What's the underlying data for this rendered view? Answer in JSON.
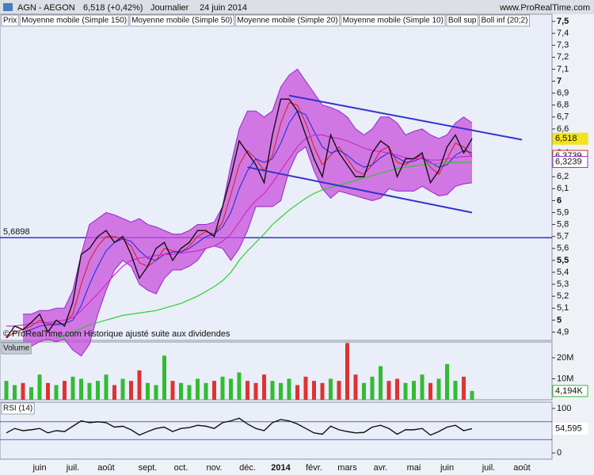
{
  "header": {
    "symbol": "AGN - AEGON",
    "price": "6,518 (+0,42%)",
    "period": "Journalier",
    "date": "24 juin 2014",
    "site": "www.ProRealTime.com"
  },
  "chart_data": [
    {
      "type": "line",
      "note": "© ProRealTime.com Historique ajusté suite aux dividendes",
      "categories": [
        null,
        null,
        null,
        null,
        "juin",
        null,
        null,
        null,
        "juil.",
        null,
        null,
        null,
        "août",
        null,
        null,
        null,
        null,
        "sept.",
        null,
        null,
        null,
        "oct.",
        null,
        null,
        null,
        "nov.",
        null,
        null,
        null,
        "déc.",
        null,
        null,
        null,
        "2014",
        null,
        null,
        null,
        "févr.",
        null,
        null,
        null,
        "mars",
        null,
        null,
        null,
        "avr.",
        null,
        null,
        null,
        "mai",
        null,
        null,
        null,
        "juin",
        null,
        null,
        null,
        null,
        "juil.",
        null,
        null,
        null,
        "août",
        null,
        null
      ],
      "series": [
        {
          "name": "Prix",
          "color": "#111111",
          "values": [
            4.85,
            4.95,
            4.92,
            4.98,
            5.05,
            4.9,
            5.0,
            4.95,
            5.15,
            5.55,
            5.6,
            5.7,
            5.75,
            5.65,
            5.7,
            5.55,
            5.35,
            5.45,
            5.6,
            5.65,
            5.5,
            5.6,
            5.65,
            5.75,
            5.75,
            5.7,
            5.95,
            6.2,
            6.5,
            6.4,
            6.3,
            6.15,
            6.55,
            6.85,
            6.85,
            6.75,
            6.55,
            6.35,
            6.2,
            6.55,
            6.4,
            6.3,
            6.2,
            6.2,
            6.4,
            6.5,
            6.45,
            6.2,
            6.35,
            6.35,
            6.4,
            6.15,
            6.25,
            6.45,
            6.55,
            6.4,
            6.52,
            null,
            null,
            null,
            null,
            null,
            null,
            null,
            null
          ]
        },
        {
          "name": "Moyenne mobile (Simple 150)",
          "color": "#22cc22",
          "values": [
            null,
            null,
            null,
            null,
            null,
            null,
            4.85,
            4.87,
            4.9,
            4.93,
            4.96,
            4.98,
            5.0,
            5.02,
            5.04,
            5.05,
            5.06,
            5.07,
            5.08,
            5.1,
            5.12,
            5.14,
            5.17,
            5.2,
            5.24,
            5.28,
            5.33,
            5.4,
            5.5,
            5.58,
            5.65,
            5.72,
            5.8,
            5.86,
            5.92,
            5.97,
            6.02,
            6.06,
            6.09,
            6.11,
            6.13,
            6.15,
            6.17,
            6.19,
            6.21,
            6.23,
            6.25,
            6.27,
            6.28,
            6.29,
            6.3,
            6.31,
            6.31,
            6.32,
            6.32,
            6.32,
            6.32,
            null,
            null,
            null,
            null,
            null,
            null,
            null,
            null
          ]
        },
        {
          "name": "Moyenne mobile (Simple 50)",
          "color": "#cc22cc",
          "values": [
            4.95,
            4.95,
            4.96,
            4.97,
            4.98,
            4.98,
            4.99,
            5.0,
            5.02,
            5.08,
            5.15,
            5.22,
            5.3,
            5.38,
            5.45,
            5.5,
            5.52,
            5.53,
            5.54,
            5.55,
            5.55,
            5.56,
            5.57,
            5.58,
            5.6,
            5.62,
            5.66,
            5.72,
            5.82,
            5.92,
            6.0,
            6.06,
            6.15,
            6.25,
            6.35,
            6.45,
            6.52,
            6.55,
            6.55,
            6.53,
            6.52,
            6.5,
            6.47,
            6.44,
            6.42,
            6.41,
            6.4,
            6.38,
            6.36,
            6.35,
            6.35,
            6.34,
            6.34,
            6.35,
            6.36,
            6.37,
            6.37,
            null,
            null,
            null,
            null,
            null,
            null,
            null,
            null
          ]
        },
        {
          "name": "Moyenne mobile (Simple 20)",
          "color": "#2233dd",
          "values": [
            null,
            null,
            4.9,
            4.92,
            4.95,
            4.96,
            4.96,
            4.97,
            5.0,
            5.12,
            5.3,
            5.45,
            5.58,
            5.65,
            5.68,
            5.66,
            5.58,
            5.52,
            5.5,
            5.55,
            5.57,
            5.57,
            5.6,
            5.65,
            5.7,
            5.72,
            5.78,
            5.9,
            6.1,
            6.25,
            6.35,
            6.32,
            6.35,
            6.48,
            6.65,
            6.75,
            6.72,
            6.58,
            6.45,
            6.4,
            6.42,
            6.38,
            6.32,
            6.28,
            6.3,
            6.36,
            6.4,
            6.36,
            6.32,
            6.33,
            6.36,
            6.32,
            6.28,
            6.3,
            6.38,
            6.42,
            6.4,
            null,
            null,
            null,
            null,
            null,
            null,
            null,
            null
          ]
        },
        {
          "name": "Moyenne mobile (Simple 10)",
          "color": "#dd2222",
          "values": [
            4.85,
            4.9,
            4.92,
            4.95,
            5.0,
            4.97,
            4.97,
            4.97,
            5.05,
            5.3,
            5.5,
            5.62,
            5.7,
            5.7,
            5.68,
            5.62,
            5.48,
            5.45,
            5.5,
            5.6,
            5.58,
            5.57,
            5.62,
            5.7,
            5.74,
            5.72,
            5.82,
            6.05,
            6.3,
            6.42,
            6.35,
            6.25,
            6.38,
            6.65,
            6.82,
            6.8,
            6.65,
            6.45,
            6.3,
            6.38,
            6.45,
            6.35,
            6.25,
            6.22,
            6.3,
            6.42,
            6.45,
            6.32,
            6.3,
            6.35,
            6.38,
            6.28,
            6.22,
            6.35,
            6.48,
            6.45,
            6.37,
            null,
            null,
            null,
            null,
            null,
            null,
            null,
            null
          ]
        },
        {
          "name": "Boll sup",
          "color": "#9933cc",
          "fill": "#c84fdc",
          "values": [
            null,
            null,
            5.05,
            5.05,
            5.08,
            5.08,
            5.1,
            5.1,
            5.25,
            5.55,
            5.8,
            5.85,
            5.9,
            5.88,
            5.85,
            5.82,
            5.85,
            5.8,
            5.78,
            5.75,
            5.72,
            5.72,
            5.75,
            5.8,
            5.8,
            5.82,
            5.95,
            6.3,
            6.6,
            6.75,
            6.75,
            6.7,
            6.75,
            6.95,
            7.05,
            7.1,
            7.0,
            6.9,
            6.8,
            6.78,
            6.75,
            6.7,
            6.6,
            6.55,
            6.6,
            6.7,
            6.7,
            6.65,
            6.55,
            6.58,
            6.6,
            6.55,
            6.52,
            6.55,
            6.65,
            6.7,
            6.65,
            null,
            null,
            null,
            null,
            null,
            null,
            null,
            null
          ]
        },
        {
          "name": "Boll inf (20;2)",
          "color": "#9933cc",
          "values": [
            null,
            null,
            4.75,
            4.78,
            4.82,
            4.84,
            4.82,
            4.84,
            4.75,
            4.7,
            4.8,
            5.05,
            5.25,
            5.42,
            5.5,
            5.45,
            5.3,
            5.25,
            5.22,
            5.35,
            5.42,
            5.42,
            5.45,
            5.5,
            5.6,
            5.62,
            5.6,
            5.5,
            5.6,
            5.75,
            5.95,
            5.95,
            5.95,
            6.0,
            6.25,
            6.4,
            6.45,
            6.25,
            6.1,
            6.02,
            6.08,
            6.06,
            6.04,
            6.02,
            6.0,
            6.02,
            6.1,
            6.08,
            6.08,
            6.08,
            6.12,
            6.08,
            6.04,
            6.05,
            6.12,
            6.14,
            6.15,
            null,
            null,
            null,
            null,
            null,
            null,
            null,
            null
          ]
        }
      ],
      "ylim": [
        4.83,
        7.56
      ],
      "yticks": [
        {
          "value": 4.9,
          "label": "4,9"
        },
        5,
        {
          "value": 5.1,
          "label": "5,1"
        },
        {
          "value": 5.2,
          "label": "5,2"
        },
        {
          "value": 5.3,
          "label": "5,3"
        },
        {
          "value": 5.4,
          "label": "5,4"
        },
        {
          "value": 5.5,
          "label": "5,5"
        },
        {
          "value": 5.6,
          "label": "5,6"
        },
        {
          "value": 5.7,
          "label": "5,7"
        },
        {
          "value": 5.8,
          "label": "5,8"
        },
        {
          "value": 5.9,
          "label": "5,9"
        },
        6,
        {
          "value": 6.1,
          "label": "6,1"
        },
        {
          "value": 6.2,
          "label": "6,2"
        },
        {
          "value": 6.3,
          "label": "6,3"
        },
        {
          "value": 6.4,
          "label": "6,4"
        },
        {
          "value": 6.5,
          "label": "6,5"
        },
        {
          "value": 6.6,
          "label": "6,6"
        },
        {
          "value": 6.7,
          "label": "6,7"
        },
        {
          "value": 6.8,
          "label": "6,8"
        },
        {
          "value": 6.9,
          "label": "6,9"
        },
        7,
        {
          "value": 7.1,
          "label": "7,1"
        },
        {
          "value": 7.2,
          "label": "7,2"
        },
        {
          "value": 7.3,
          "label": "7,3"
        },
        {
          "value": 7.4,
          "label": "7,4"
        },
        {
          "value": 7.5,
          "label": "7,5"
        }
      ],
      "hline": {
        "value": 5.6898,
        "label": "5,6898",
        "color": "#3333cc"
      },
      "trend_lines": [
        {
          "x": [
            34,
            62
          ],
          "values": [
            6.88,
            6.51
          ],
          "color": "#3333cc"
        },
        {
          "x": [
            29,
            56
          ],
          "values": [
            6.28,
            5.9
          ],
          "color": "#3333cc"
        }
      ],
      "last_labels": [
        {
          "value": 6.3739,
          "label": "6,3739",
          "color": "#dd2222"
        },
        {
          "value": 6.3239,
          "label": "6,3239",
          "color": "#9933cc"
        },
        {
          "value": 6.518,
          "label": "6,518",
          "color": "#f3e21c"
        }
      ]
    },
    {
      "type": "bar",
      "series": [
        {
          "name": "Volume",
          "up_color": "#33bb33",
          "down_color": "#dd3333",
          "values": [
            9000000,
            7000000,
            8000000,
            6000000,
            12000000,
            8000000,
            7000000,
            9000000,
            11000000,
            10000000,
            8000000,
            9000000,
            12000000,
            7000000,
            10000000,
            9000000,
            14000000,
            8000000,
            7000000,
            21000000,
            9000000,
            8000000,
            7000000,
            10000000,
            8000000,
            9000000,
            11000000,
            10000000,
            13000000,
            9000000,
            8000000,
            12000000,
            9000000,
            8000000,
            10000000,
            7000000,
            11000000,
            9000000,
            8000000,
            10000000,
            9000000,
            27000000,
            12000000,
            8000000,
            11000000,
            16000000,
            9000000,
            10000000,
            8000000,
            9000000,
            12000000,
            8000000,
            10000000,
            17000000,
            9000000,
            11000000,
            4194000,
            null,
            null,
            null,
            null,
            null,
            null,
            null,
            null
          ]
        }
      ],
      "ylim": [
        0,
        27500000
      ],
      "yticks": [
        {
          "value": 10000000,
          "label": "10M"
        },
        {
          "value": 20000000,
          "label": "20M"
        }
      ],
      "last_labels": [
        {
          "value": 4194000,
          "label": "4,194K",
          "color": "#33bb33"
        }
      ]
    },
    {
      "type": "line",
      "series": [
        {
          "name": "RSI (14)",
          "color": "#111111",
          "values": [
            45,
            55,
            50,
            52,
            55,
            45,
            50,
            48,
            60,
            72,
            68,
            70,
            68,
            58,
            60,
            52,
            40,
            48,
            55,
            58,
            48,
            55,
            57,
            62,
            60,
            55,
            68,
            72,
            78,
            65,
            55,
            50,
            68,
            75,
            72,
            65,
            55,
            45,
            42,
            60,
            52,
            48,
            45,
            46,
            58,
            62,
            55,
            42,
            52,
            52,
            55,
            40,
            48,
            58,
            62,
            50,
            54.595,
            null,
            null,
            null,
            null,
            null,
            null,
            null,
            null
          ]
        }
      ],
      "ylim": [
        -14,
        114
      ],
      "yticks": [
        0,
        100
      ],
      "levels": [
        30,
        70
      ],
      "last_labels": [
        {
          "value": 54.595,
          "label": "54,595",
          "color": "#ffffff"
        }
      ]
    }
  ]
}
